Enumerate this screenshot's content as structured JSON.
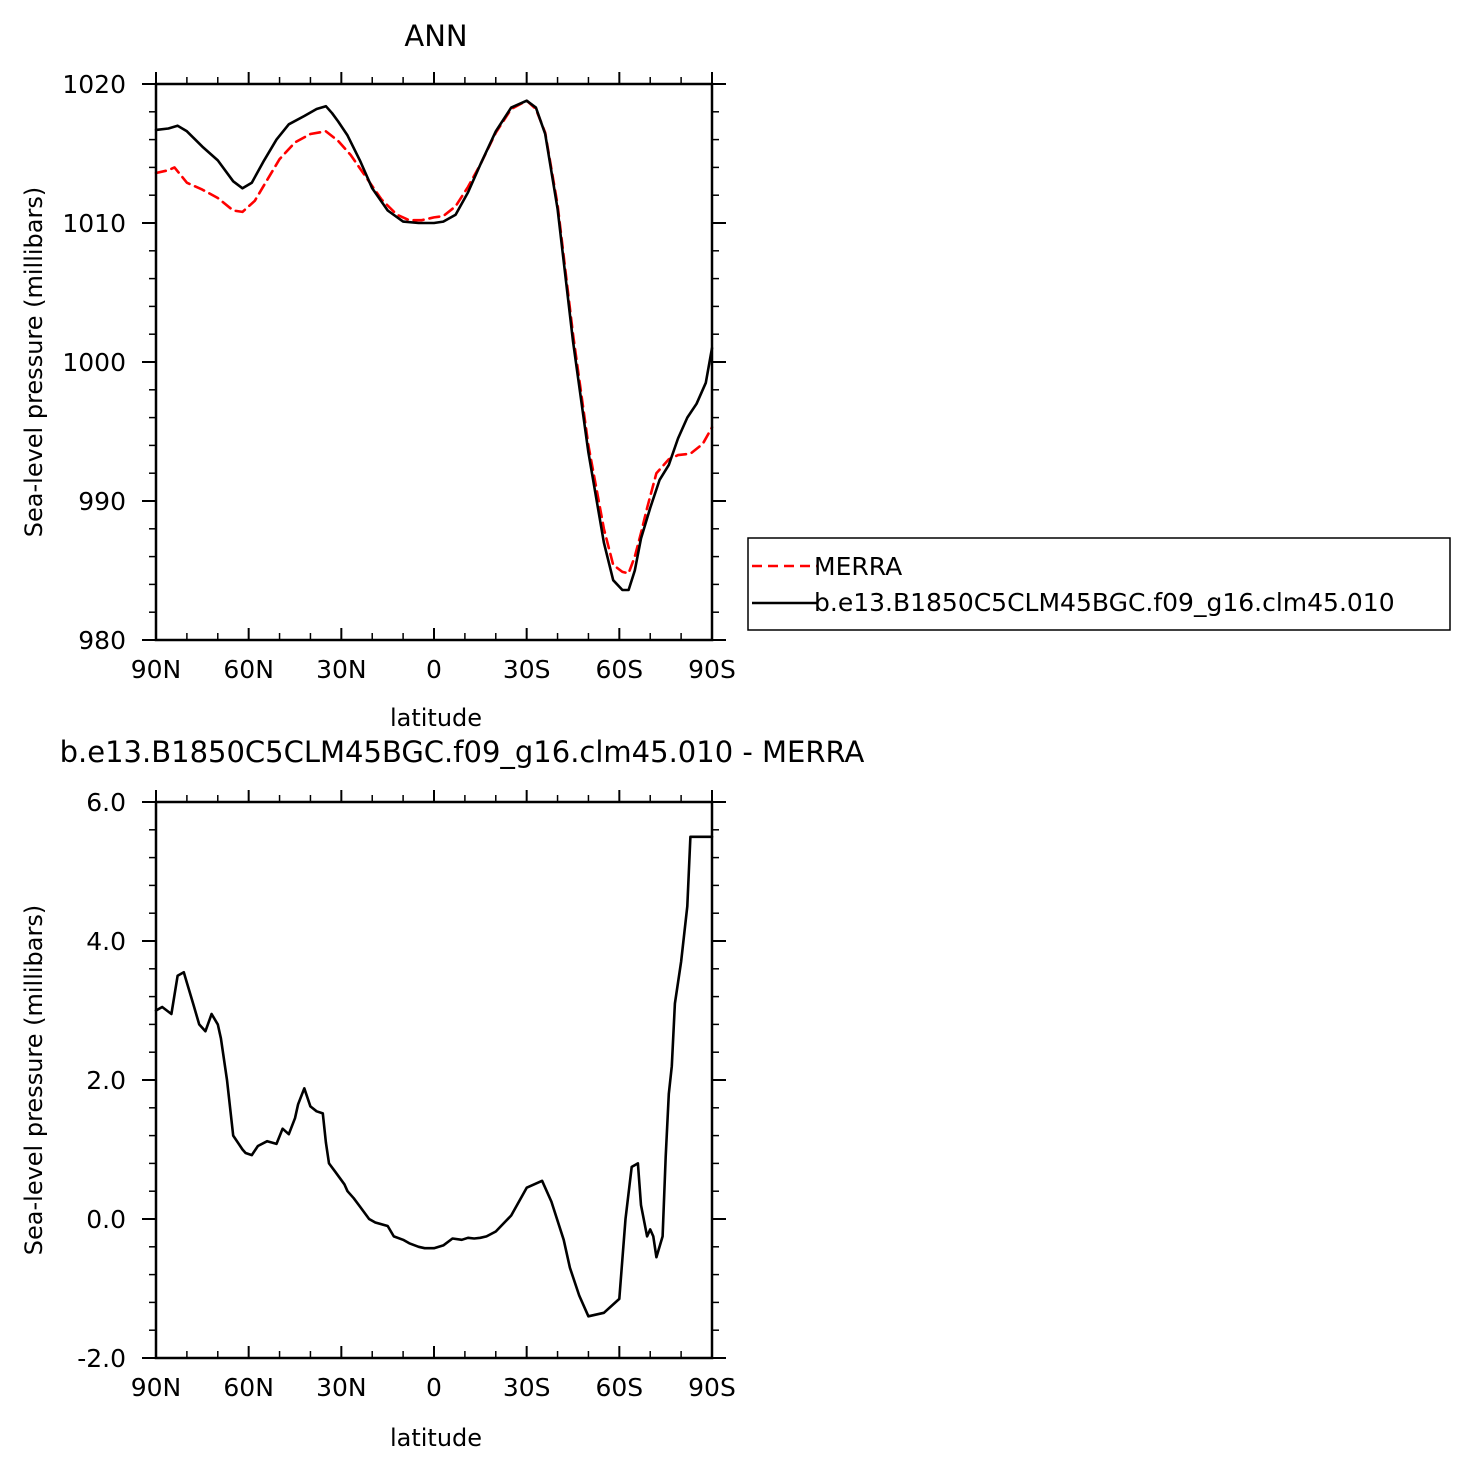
{
  "chart_data": [
    {
      "type": "line",
      "title": "ANN",
      "xlabel": "latitude",
      "ylabel": "Sea-level pressure (millibars)",
      "xticks": [
        "90N",
        "60N",
        "30N",
        "0",
        "30S",
        "60S",
        "90S"
      ],
      "xtick_values": [
        90,
        60,
        30,
        0,
        -30,
        -60,
        -90
      ],
      "xlim": [
        90,
        -90
      ],
      "yticks": [
        "980",
        "990",
        "1000",
        "1010",
        "1020"
      ],
      "ytick_values": [
        980,
        990,
        1000,
        1010,
        1020
      ],
      "ylim": [
        980,
        1020
      ],
      "legend": "right-middle",
      "series": [
        {
          "name": "MERRA",
          "color": "#ff0000",
          "dash": "dashed",
          "x": [
            90,
            86,
            84,
            80,
            75,
            70,
            65,
            62,
            58,
            54,
            50,
            45,
            40,
            35,
            31,
            27,
            22,
            17,
            12,
            8,
            4,
            0,
            -3,
            -7,
            -11,
            -15,
            -20,
            -25,
            -30,
            -33,
            -36,
            -40,
            -45,
            -50,
            -55,
            -58,
            -61,
            -63,
            -65,
            -67,
            -69,
            -72,
            -76,
            -79,
            -83,
            -87,
            -90
          ],
          "y": [
            1013.6,
            1013.8,
            1014.0,
            1012.9,
            1012.4,
            1011.8,
            1010.9,
            1010.8,
            1011.6,
            1013.1,
            1014.6,
            1015.8,
            1016.4,
            1016.6,
            1015.9,
            1014.9,
            1013.3,
            1011.7,
            1010.6,
            1010.2,
            1010.2,
            1010.4,
            1010.5,
            1011.2,
            1012.6,
            1014.2,
            1016.5,
            1018.2,
            1018.8,
            1018.2,
            1016.5,
            1011.3,
            1002.0,
            994.0,
            988.0,
            985.4,
            984.9,
            984.8,
            986.0,
            987.7,
            989.5,
            992.0,
            993.0,
            993.3,
            993.4,
            994.1,
            995.3
          ]
        },
        {
          "name": "b.e13.B1850C5CLM45BGC.f09_g16.clm45.010",
          "color": "#000000",
          "dash": "solid",
          "x": [
            90,
            86,
            83,
            80,
            75,
            70,
            65,
            62,
            59,
            55,
            51,
            47,
            42,
            38,
            35,
            33,
            31,
            28,
            24,
            20,
            15,
            10,
            5,
            0,
            -3,
            -7,
            -11,
            -15,
            -20,
            -25,
            -30,
            -33,
            -36,
            -40,
            -45,
            -50,
            -55,
            -58,
            -61,
            -63,
            -65,
            -67,
            -70,
            -73,
            -76,
            -79,
            -82,
            -85,
            -88,
            -90
          ],
          "y": [
            1016.7,
            1016.8,
            1017.0,
            1016.6,
            1015.5,
            1014.5,
            1013.0,
            1012.5,
            1012.9,
            1014.5,
            1016.0,
            1017.1,
            1017.7,
            1018.2,
            1018.4,
            1017.9,
            1017.3,
            1016.3,
            1014.5,
            1012.5,
            1010.9,
            1010.1,
            1010.0,
            1010.0,
            1010.1,
            1010.6,
            1012.2,
            1014.2,
            1016.6,
            1018.3,
            1018.8,
            1018.3,
            1016.4,
            1011.0,
            1001.5,
            993.5,
            987.0,
            984.3,
            983.6,
            983.6,
            985.0,
            987.3,
            989.5,
            991.5,
            992.6,
            994.5,
            996.0,
            997.0,
            998.5,
            1001.0
          ]
        }
      ]
    },
    {
      "type": "line",
      "title": "b.e13.B1850C5CLM45BGC.f09_g16.clm45.010 - MERRA",
      "xlabel": "latitude",
      "ylabel": "Sea-level pressure (millibars)",
      "xticks": [
        "90N",
        "60N",
        "30N",
        "0",
        "30S",
        "60S",
        "90S"
      ],
      "xtick_values": [
        90,
        60,
        30,
        0,
        -30,
        -60,
        -90
      ],
      "xlim": [
        90,
        -90
      ],
      "yticks": [
        "-2.0",
        "0.0",
        "2.0",
        "4.0",
        "6.0"
      ],
      "ytick_values": [
        -2,
        0,
        2,
        4,
        6
      ],
      "ylim": [
        -2,
        6
      ],
      "series": [
        {
          "color": "#000000",
          "dash": "solid",
          "x": [
            90,
            88,
            85,
            83,
            81,
            80,
            78,
            76,
            74,
            72,
            70,
            69,
            67,
            65,
            62,
            61,
            59,
            57,
            54,
            51,
            49,
            47,
            45,
            44,
            42,
            40,
            38,
            36,
            35,
            34,
            32,
            29,
            28,
            26,
            24,
            21,
            19,
            15,
            13,
            10,
            8,
            5,
            3,
            0,
            -3,
            -6,
            -9,
            -11,
            -13,
            -15,
            -17,
            -20,
            -25,
            -30,
            -35,
            -38,
            -42,
            -44,
            -47,
            -50,
            -55,
            -60,
            -62,
            -64,
            -66,
            -67,
            -69,
            -70,
            -71,
            -72,
            -74,
            -75,
            -76,
            -77,
            -78,
            -80,
            -82,
            -83,
            -84,
            -85,
            -86,
            -87,
            -88,
            -89,
            -90
          ],
          "y": [
            3.0,
            3.05,
            2.95,
            3.5,
            3.55,
            3.4,
            3.1,
            2.8,
            2.7,
            2.95,
            2.8,
            2.6,
            2.0,
            1.2,
            1.0,
            0.95,
            0.92,
            1.05,
            1.12,
            1.08,
            1.3,
            1.22,
            1.45,
            1.65,
            1.88,
            1.62,
            1.55,
            1.52,
            1.1,
            0.8,
            0.68,
            0.5,
            0.4,
            0.3,
            0.18,
            0.0,
            -0.05,
            -0.1,
            -0.25,
            -0.3,
            -0.35,
            -0.4,
            -0.42,
            -0.42,
            -0.38,
            -0.28,
            -0.3,
            -0.27,
            -0.28,
            -0.27,
            -0.25,
            -0.18,
            0.05,
            0.45,
            0.55,
            0.25,
            -0.3,
            -0.7,
            -1.1,
            -1.4,
            -1.35,
            -1.15,
            0.0,
            0.75,
            0.8,
            0.2,
            -0.25,
            -0.15,
            -0.25,
            -0.55,
            -0.25,
            0.9,
            1.8,
            2.2,
            3.1,
            3.7,
            4.5,
            5.5,
            5.5,
            5.5,
            5.5,
            5.5,
            5.5,
            5.5,
            5.5
          ]
        }
      ]
    }
  ]
}
